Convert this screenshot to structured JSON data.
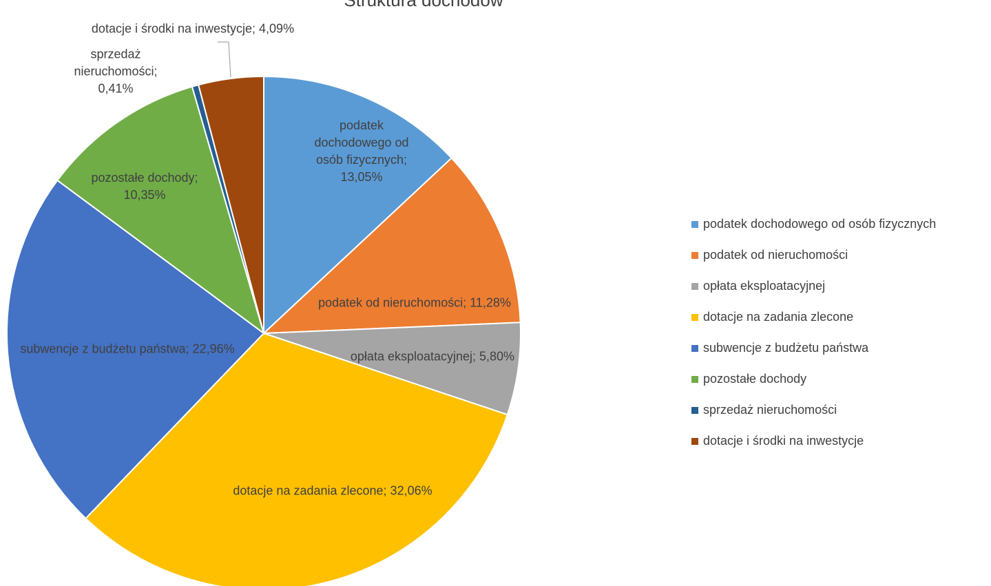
{
  "chart_data": {
    "type": "pie",
    "title": "Struktura dochodów",
    "categories": [
      "podatek dochodowego od osób fizycznych",
      "podatek od nieruchomości",
      "opłata eksploatacyjnej",
      "dotacje na zadania zlecone",
      "subwencje z budżetu państwa",
      "pozostałe dochody",
      "sprzedaż nieruchomości",
      "dotacje i środki na inwestycje"
    ],
    "values": [
      13.05,
      11.28,
      5.8,
      32.06,
      22.96,
      10.35,
      0.41,
      4.09
    ],
    "value_labels": [
      "podatek dochodowego od osób fizycznych; 13,05%",
      "podatek od nieruchomości; 11,28%",
      "opłata eksploatacyjnej; 5,80%",
      "dotacje na zadania zlecone; 32,06%",
      "subwencje z budżetu państwa; 22,96%",
      "pozostałe dochody; 10,35%",
      "sprzedaż nieruchomości; 0,41%",
      "dotacje i środki na inwestycje; 4,09%"
    ],
    "colors": [
      "#5b9bd5",
      "#ed7d31",
      "#a5a5a5",
      "#ffc000",
      "#4472c4",
      "#70ad47",
      "#255e91",
      "#9e480e"
    ],
    "legend": "right"
  }
}
